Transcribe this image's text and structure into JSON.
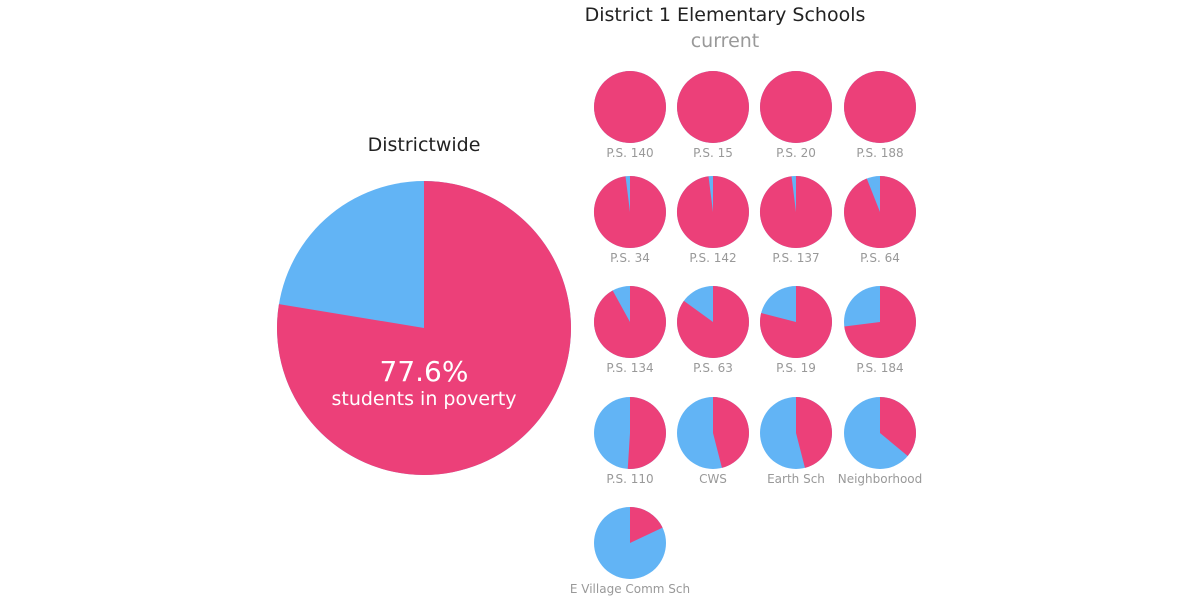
{
  "chart_data": {
    "type": "pie",
    "title": "District 1 Elementary Schools",
    "subtitle": "current",
    "colors": {
      "poverty": "#ec4079",
      "non_poverty": "#62b4f5"
    },
    "districtwide": {
      "label": "Districtwide",
      "value": 77.6,
      "value_text": "77.6%",
      "caption": "students in poverty"
    },
    "schools": [
      {
        "name": "P.S. 140",
        "value": 100
      },
      {
        "name": "P.S. 15",
        "value": 100
      },
      {
        "name": "P.S. 20",
        "value": 100
      },
      {
        "name": "P.S. 188",
        "value": 100
      },
      {
        "name": "P.S. 34",
        "value": 98
      },
      {
        "name": "P.S. 142",
        "value": 98
      },
      {
        "name": "P.S. 137",
        "value": 98
      },
      {
        "name": "P.S. 64",
        "value": 94
      },
      {
        "name": "P.S. 134",
        "value": 92
      },
      {
        "name": "P.S. 63",
        "value": 85
      },
      {
        "name": "P.S. 19",
        "value": 79
      },
      {
        "name": "P.S. 184",
        "value": 73
      },
      {
        "name": "P.S. 110",
        "value": 51
      },
      {
        "name": "CWS",
        "value": 46
      },
      {
        "name": "Earth Sch",
        "value": 46
      },
      {
        "name": "Neighborhood",
        "value": 36
      },
      {
        "name": "E Village Comm Sch",
        "value": 18
      }
    ]
  }
}
